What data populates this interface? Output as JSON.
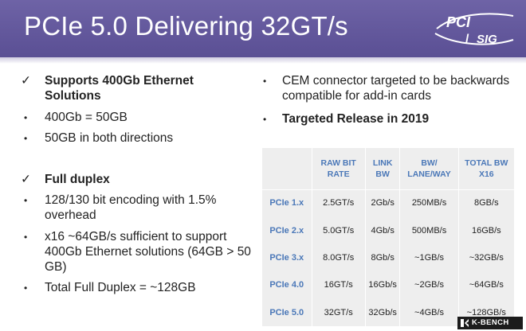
{
  "slide": {
    "title": "PCIe 5.0 Delivering 32GT/s",
    "logo_text": "PCI SIG",
    "header_color": "#5f5499",
    "accent_blue": "#4b78b8"
  },
  "left_column": [
    {
      "type": "check",
      "text": "Supports 400Gb Ethernet Solutions"
    },
    {
      "type": "bullet",
      "text": "400Gb = 50GB"
    },
    {
      "type": "bullet",
      "text": "50GB in both directions"
    },
    {
      "type": "check",
      "text": "Full duplex"
    },
    {
      "type": "bullet",
      "text": "128/130 bit encoding with 1.5% overhead"
    },
    {
      "type": "bullet",
      "text": "x16 ~64GB/s sufficient to support 400Gb Ethernet solutions (64GB > 50 GB)"
    },
    {
      "type": "bullet",
      "text": "Total Full Duplex = ~128GB"
    }
  ],
  "right_column": [
    {
      "type": "bullet",
      "text": "CEM connector targeted to be backwards compatible for add-in cards"
    },
    {
      "type": "bullet",
      "text": "Targeted Release in 2019",
      "bold": true
    }
  ],
  "check_glyph": "✓",
  "bullet_glyph": "•",
  "table": {
    "headers": [
      "",
      "RAW BIT RATE",
      "LINK BW",
      "BW/ LANE/WAY",
      "TOTAL BW X16"
    ],
    "rows": [
      [
        "PCIe 1.x",
        "2.5GT/s",
        "2Gb/s",
        "250MB/s",
        "8GB/s"
      ],
      [
        "PCIe 2.x",
        "5.0GT/s",
        "4Gb/s",
        "500MB/s",
        "16GB/s"
      ],
      [
        "PCIe 3.x",
        "8.0GT/s",
        "8Gb/s",
        "~1GB/s",
        "~32GB/s"
      ],
      [
        "PCIe 4.0",
        "16GT/s",
        "16Gb/s",
        "~2GB/s",
        "~64GB/s"
      ],
      [
        "PCIe 5.0",
        "32GT/s",
        "32Gb/s",
        "~4GB/s",
        "~128GB/s"
      ]
    ]
  },
  "watermark": {
    "text": "K-BENCH"
  }
}
